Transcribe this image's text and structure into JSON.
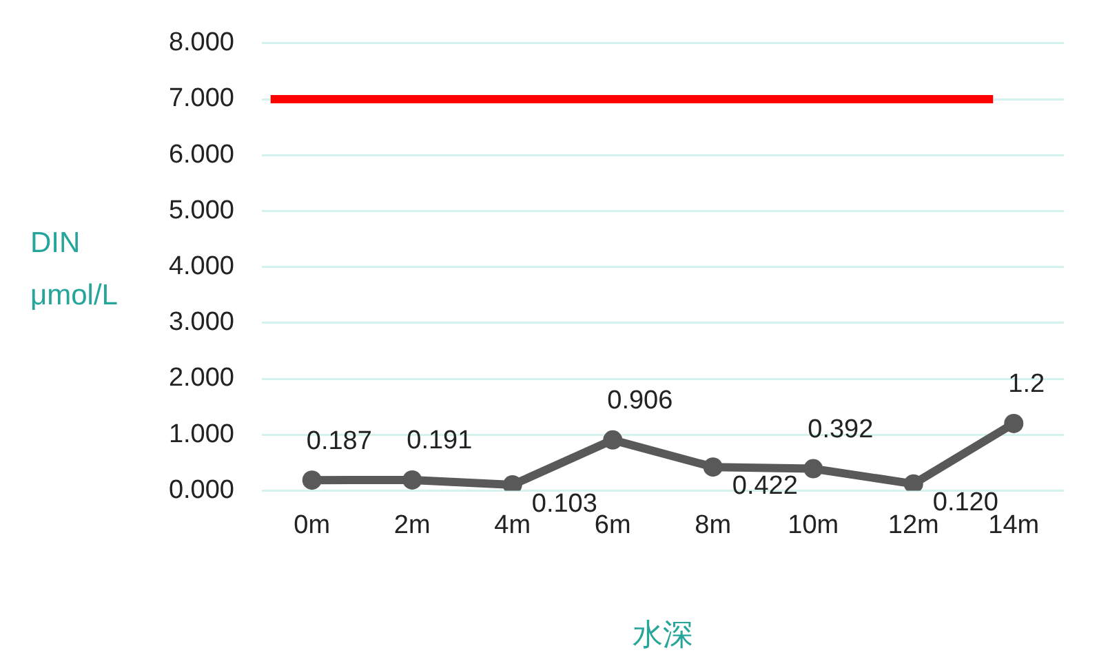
{
  "chart_data": {
    "type": "line",
    "xlabel": "水深",
    "ylabel": "DIN\nμmol/L",
    "categories": [
      "0m",
      "2m",
      "4m",
      "6m",
      "8m",
      "10m",
      "12m",
      "14m"
    ],
    "series": [
      {
        "color": "#595959",
        "values": [
          0.187,
          0.191,
          0.103,
          0.906,
          0.422,
          0.392,
          0.12,
          1.2
        ],
        "value_labels": [
          "0.187",
          "0.191",
          "0.103",
          "0.906",
          "0.422",
          "0.392",
          "0.120",
          "1.2"
        ]
      }
    ],
    "ylim": [
      0,
      8
    ],
    "yticks": [
      {
        "value": 0,
        "label": "0.000"
      },
      {
        "value": 1,
        "label": "1.000"
      },
      {
        "value": 2,
        "label": "2.000"
      },
      {
        "value": 3,
        "label": "3.000"
      },
      {
        "value": 4,
        "label": "4.000"
      },
      {
        "value": 5,
        "label": "5.000"
      },
      {
        "value": 6,
        "label": "6.000"
      },
      {
        "value": 7,
        "label": "7.000"
      },
      {
        "value": 8,
        "label": "8.000"
      }
    ],
    "ref_lines": [
      {
        "axis": "y",
        "value": 7,
        "color": "#ff0000"
      }
    ],
    "grid": "y",
    "marker": "circle",
    "line_style": "solid",
    "legend": false
  }
}
